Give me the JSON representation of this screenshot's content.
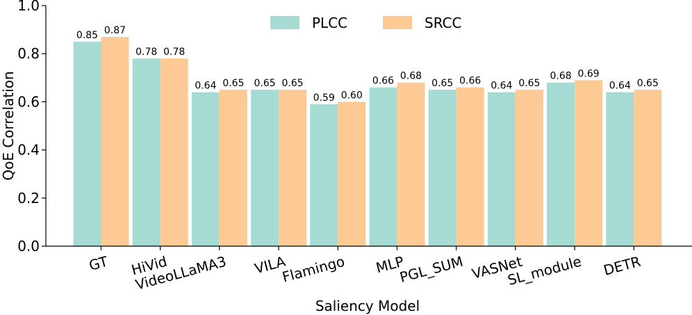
{
  "chart_data": {
    "type": "bar",
    "title": "",
    "xlabel": "Saliency Model",
    "ylabel": "QoE Correlation",
    "ylim": [
      0.0,
      1.0
    ],
    "yticks": [
      "0.0",
      "0.2",
      "0.4",
      "0.6",
      "0.8",
      "1.0"
    ],
    "categories": [
      "GT",
      "HiVid",
      "VideoLLaMA3",
      "VILA",
      "Flamingo",
      "MLP",
      "PGL_SUM",
      "VASNet",
      "SL_module",
      "DETR"
    ],
    "series": [
      {
        "name": "PLCC",
        "color": "#a6dbd4",
        "values": [
          0.85,
          0.78,
          0.64,
          0.65,
          0.59,
          0.66,
          0.65,
          0.64,
          0.68,
          0.64
        ],
        "labels": [
          "0.85",
          "0.78",
          "0.64",
          "0.65",
          "0.59",
          "0.66",
          "0.65",
          "0.64",
          "0.68",
          "0.64"
        ]
      },
      {
        "name": "SRCC",
        "color": "#fdca96",
        "values": [
          0.87,
          0.78,
          0.65,
          0.65,
          0.6,
          0.68,
          0.66,
          0.65,
          0.69,
          0.65
        ],
        "labels": [
          "0.87",
          "0.78",
          "0.65",
          "0.65",
          "0.60",
          "0.68",
          "0.66",
          "0.65",
          "0.69",
          "0.65"
        ]
      }
    ],
    "legend_position": "top-center",
    "grid": false
  }
}
